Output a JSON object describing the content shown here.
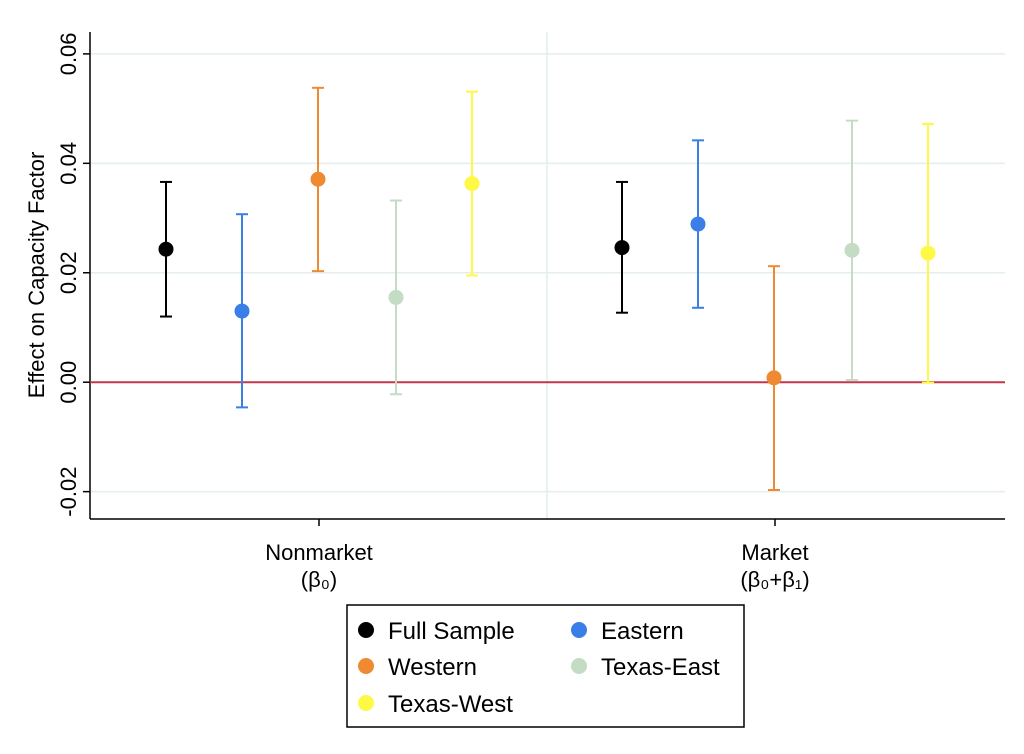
{
  "chart_data": {
    "type": "scatter",
    "subtype": "coefficient-plot-with-confidence-intervals",
    "title": "",
    "xlabel": "",
    "ylabel": "Effect on Capacity Factor",
    "ylim": [
      -0.025,
      0.064
    ],
    "yticks": [
      "-0.02",
      "0.00",
      "0.02",
      "0.04",
      "0.06"
    ],
    "ytick_values": [
      -0.02,
      0.0,
      0.02,
      0.04,
      0.06
    ],
    "grid": true,
    "reference_line": {
      "y": 0.0,
      "color": "#c0394b"
    },
    "categories": [
      {
        "line1": "Nonmarket",
        "line2": "(β₀)"
      },
      {
        "line1": "Market",
        "line2": "(β₀+β₁)"
      }
    ],
    "legend_position": "bottom",
    "legend": {
      "rows": [
        [
          {
            "label": "Full Sample",
            "color": "#000000"
          },
          {
            "label": "Eastern",
            "color": "#3a7ee8"
          }
        ],
        [
          {
            "label": "Western",
            "color": "#ef8a32"
          },
          {
            "label": "Texas-East",
            "color": "#c4dcc4"
          }
        ],
        [
          {
            "label": "Texas-West",
            "color": "#fff845"
          }
        ]
      ]
    },
    "series": [
      {
        "name": "Full Sample",
        "color": "#000000",
        "points": [
          {
            "category": 0,
            "estimate": 0.0243,
            "ci_low": 0.012,
            "ci_high": 0.0366
          },
          {
            "category": 1,
            "estimate": 0.0246,
            "ci_low": 0.0127,
            "ci_high": 0.0366
          }
        ]
      },
      {
        "name": "Eastern",
        "color": "#3a7ee8",
        "points": [
          {
            "category": 0,
            "estimate": 0.013,
            "ci_low": -0.0046,
            "ci_high": 0.0307
          },
          {
            "category": 1,
            "estimate": 0.0289,
            "ci_low": 0.0136,
            "ci_high": 0.0442
          }
        ]
      },
      {
        "name": "Western",
        "color": "#ef8a32",
        "points": [
          {
            "category": 0,
            "estimate": 0.0371,
            "ci_low": 0.0203,
            "ci_high": 0.0538
          },
          {
            "category": 1,
            "estimate": 0.0008,
            "ci_low": -0.0197,
            "ci_high": 0.0212
          }
        ]
      },
      {
        "name": "Texas-East",
        "color": "#c4dcc4",
        "points": [
          {
            "category": 0,
            "estimate": 0.0155,
            "ci_low": -0.0022,
            "ci_high": 0.0332
          },
          {
            "category": 1,
            "estimate": 0.0241,
            "ci_low": 0.0004,
            "ci_high": 0.0478
          }
        ]
      },
      {
        "name": "Texas-West",
        "color": "#fff845",
        "points": [
          {
            "category": 0,
            "estimate": 0.0363,
            "ci_low": 0.0195,
            "ci_high": 0.0531
          },
          {
            "category": 1,
            "estimate": 0.0236,
            "ci_low": -0.0001,
            "ci_high": 0.0472
          }
        ]
      }
    ]
  }
}
